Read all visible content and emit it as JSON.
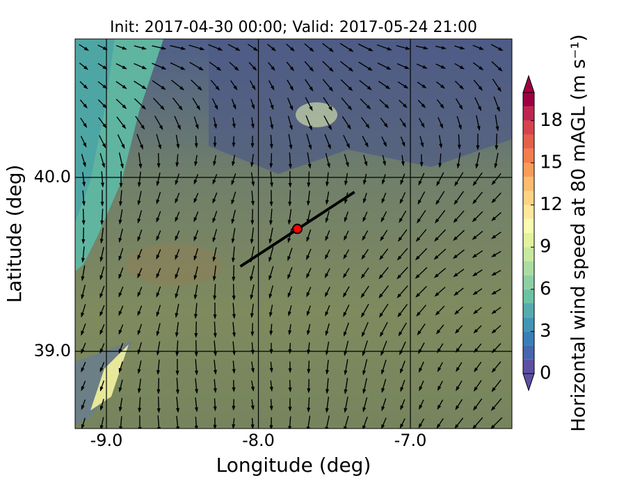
{
  "chart_data": {
    "type": "map",
    "title": "Init: 2017-04-30 00:00; Valid: 2017-05-24 21:00",
    "x_label": "Longitude (deg)",
    "y_label": "Latitude (deg)",
    "xlim": [
      -9.206,
      -6.332
    ],
    "ylim": [
      38.556,
      40.796
    ],
    "xticks": [
      {
        "value": -9,
        "label": "-9.0"
      },
      {
        "value": -8,
        "label": "-8.0"
      },
      {
        "value": -7,
        "label": "-7.0"
      }
    ],
    "yticks": [
      {
        "value": 39,
        "label": "39.0"
      },
      {
        "value": 40,
        "label": "40.0"
      }
    ],
    "grid": true,
    "site": {
      "lon": -7.744,
      "lat": 39.704,
      "color": "#ff0000"
    },
    "transect": {
      "lon": [
        -8.119,
        -7.368
      ],
      "lat": [
        39.488,
        39.916
      ]
    },
    "colorbar": {
      "label": "Horizontal wind speed at 80 mAGL (m s⁻¹)",
      "lim": [
        0,
        20
      ],
      "ticks": [
        0,
        3,
        6,
        9,
        12,
        15,
        18
      ],
      "levels": [
        0,
        1,
        2,
        3,
        4,
        5,
        6,
        7,
        8,
        9,
        10,
        11,
        12,
        13,
        14,
        15,
        16,
        17,
        18,
        19,
        20
      ],
      "colors": [
        "#5e4fa2",
        "#4666af",
        "#3a7eb8",
        "#4195b5",
        "#55abae",
        "#6cc3a4",
        "#8dd0a4",
        "#abdda2",
        "#c7e9a0",
        "#e2f29d",
        "#f8fbb0",
        "#fee89b",
        "#fed382",
        "#fdbb6c",
        "#fa9c58",
        "#f47d4d",
        "#e65f49",
        "#d6434d",
        "#bf2651",
        "#9e0142"
      ],
      "extend": "both"
    }
  }
}
